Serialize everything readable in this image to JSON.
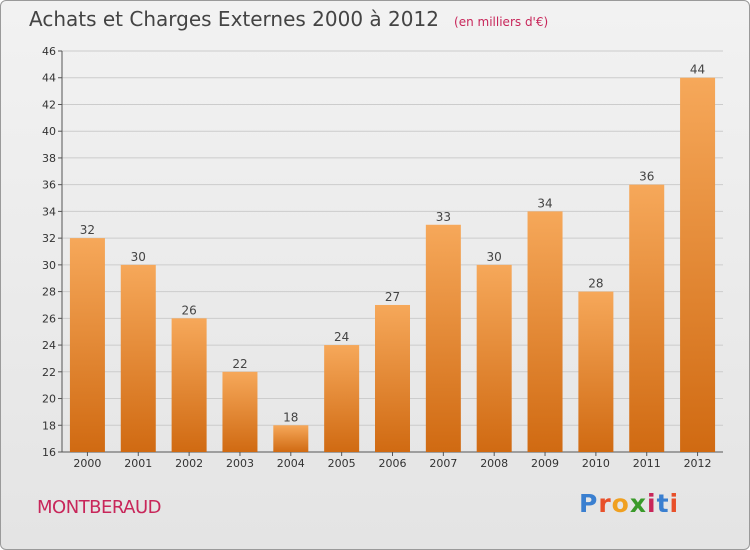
{
  "header": {
    "title": "Achats et Charges Externes 2000 à 2012",
    "subtitle": "(en milliers d'€)"
  },
  "footer": {
    "commune": "MONTBERAUD",
    "logo_text": "Proxiti",
    "logo_colors": [
      "#3a7fd0",
      "#e8502a",
      "#f0a020",
      "#3a9a2a",
      "#c8265a",
      "#3a7fd0",
      "#e8502a"
    ]
  },
  "colors": {
    "bar_top": "#f6a85a",
    "bar_bottom": "#d06a12",
    "grid": "#cccccc",
    "accent": "#c8265a"
  },
  "chart_data": {
    "type": "bar",
    "title": "Achats et Charges Externes 2000 à 2012",
    "subtitle": "(en milliers d'€)",
    "categories": [
      "2000",
      "2001",
      "2002",
      "2003",
      "2004",
      "2005",
      "2006",
      "2007",
      "2008",
      "2009",
      "2010",
      "2011",
      "2012"
    ],
    "values": [
      32,
      30,
      26,
      22,
      18,
      24,
      27,
      33,
      30,
      34,
      28,
      36,
      44
    ],
    "ylim": [
      16,
      46
    ],
    "yticks": [
      16,
      18,
      20,
      22,
      24,
      26,
      28,
      30,
      32,
      34,
      36,
      38,
      40,
      42,
      44,
      46
    ],
    "grid": "horizontal",
    "data_labels": true
  }
}
